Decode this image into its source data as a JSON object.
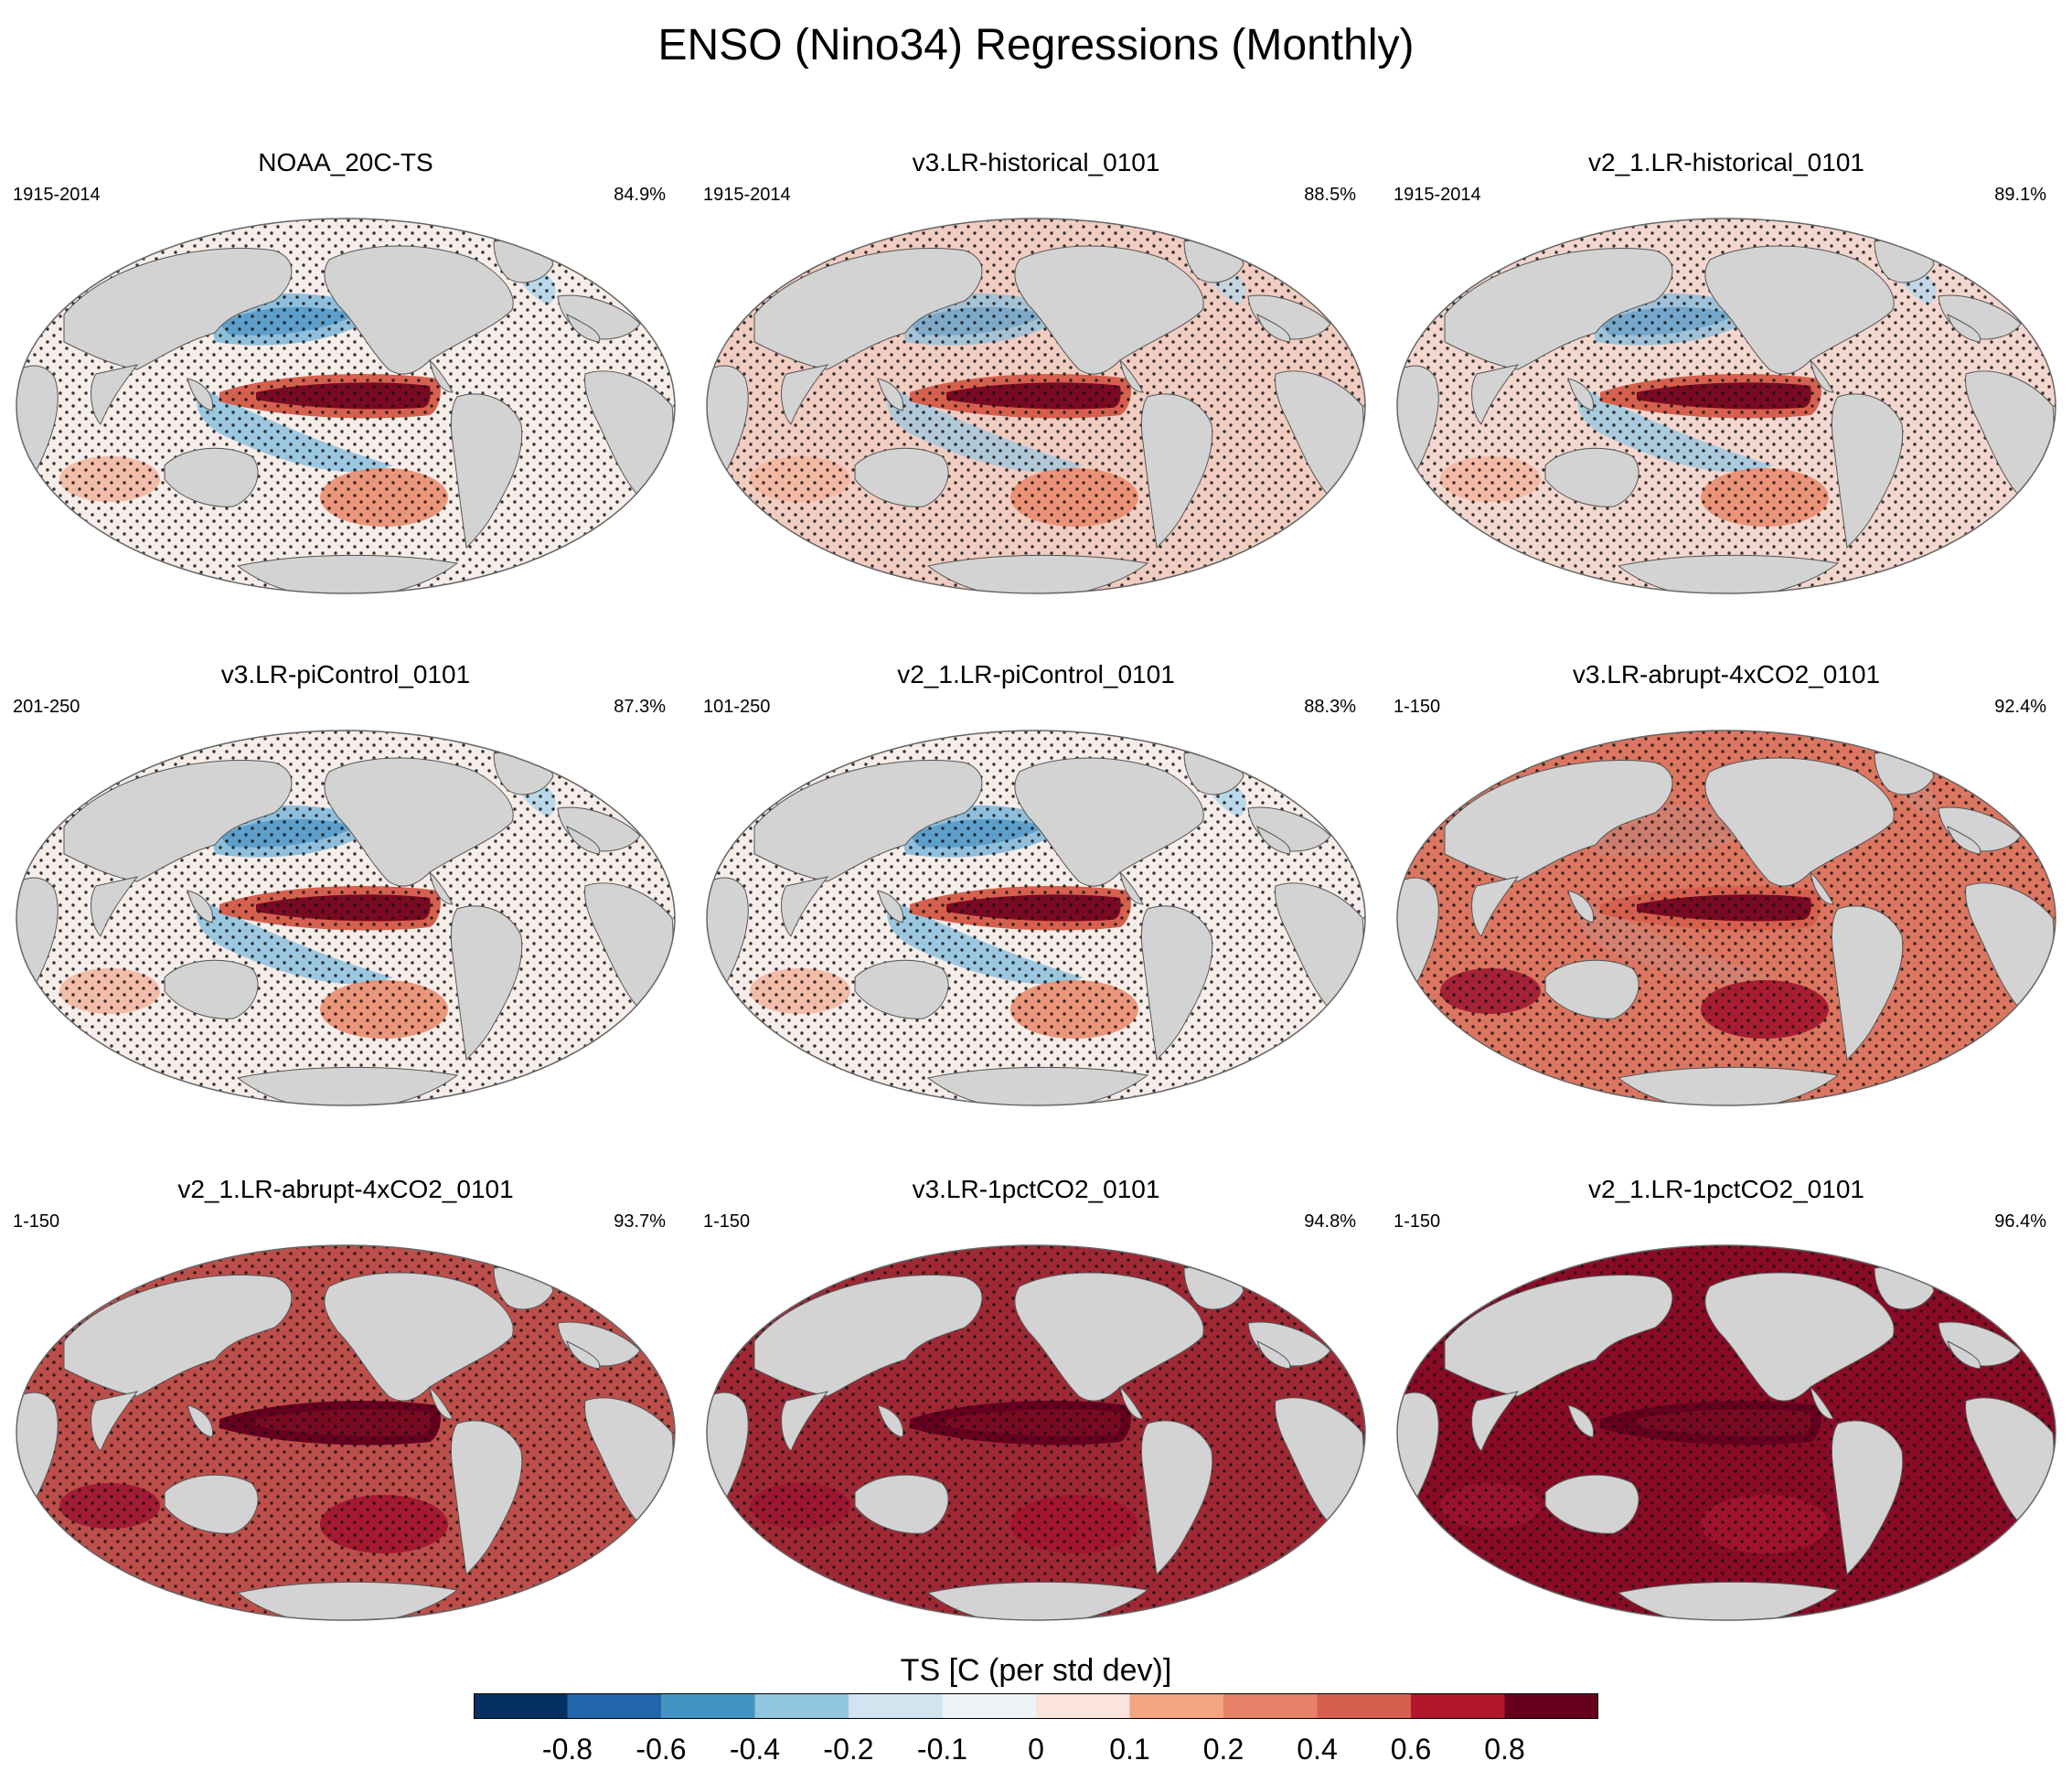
{
  "title": "ENSO (Nino34) Regressions (Monthly)",
  "panels": [
    {
      "title": "NOAA_20C-TS",
      "period": "1915-2014",
      "percent": "84.9%",
      "warming": 0
    },
    {
      "title": "v3.LR-historical_0101",
      "period": "1915-2014",
      "percent": "88.5%",
      "warming": 0.15
    },
    {
      "title": "v2_1.LR-historical_0101",
      "period": "1915-2014",
      "percent": "89.1%",
      "warming": 0.1
    },
    {
      "title": "v3.LR-piControl_0101",
      "period": "201-250",
      "percent": "87.3%",
      "warming": 0
    },
    {
      "title": "v2_1.LR-piControl_0101",
      "period": "101-250",
      "percent": "88.3%",
      "warming": 0
    },
    {
      "title": "v3.LR-abrupt-4xCO2_0101",
      "period": "1-150",
      "percent": "92.4%",
      "warming": 0.55
    },
    {
      "title": "v2_1.LR-abrupt-4xCO2_0101",
      "period": "1-150",
      "percent": "93.7%",
      "warming": 0.72
    },
    {
      "title": "v3.LR-1pctCO2_0101",
      "period": "1-150",
      "percent": "94.8%",
      "warming": 0.88
    },
    {
      "title": "v2_1.LR-1pctCO2_0101",
      "period": "1-150",
      "percent": "96.4%",
      "warming": 1.0
    }
  ],
  "colorbar": {
    "title": "TS [C (per std dev)]",
    "labels": [
      "-0.8",
      "-0.6",
      "-0.4",
      "-0.2",
      "-0.1",
      "0",
      "0.1",
      "0.2",
      "0.4",
      "0.6",
      "0.8"
    ],
    "colors": [
      "#053061",
      "#2166ac",
      "#4393c3",
      "#92c5de",
      "#d1e5f0",
      "#eef3f7",
      "#fbe4dc",
      "#f4a582",
      "#e58267",
      "#d6604d",
      "#b2182b",
      "#67001f"
    ]
  }
}
